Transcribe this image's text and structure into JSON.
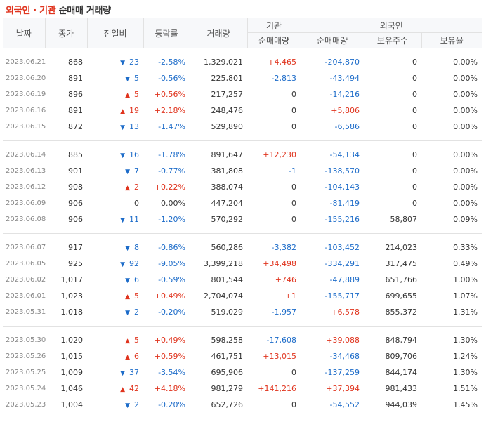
{
  "title": {
    "part1": "외국인 · 기관",
    "part2": "순매매 거래량"
  },
  "headers": {
    "date": "날짜",
    "close": "종가",
    "change": "전일비",
    "rate": "등락률",
    "volume": "거래량",
    "inst_group": "기관",
    "inst_net": "순매매량",
    "foreign_group": "외국인",
    "foreign_net": "순매매량",
    "foreign_shares": "보유주수",
    "foreign_ratio": "보유율"
  },
  "groups": [
    [
      {
        "date": "2023.06.21",
        "close": "868",
        "dir": "down",
        "change": "23",
        "rate": "-2.58%",
        "volume": "1,329,021",
        "inst": "+4,465",
        "frn": "-204,870",
        "shares": "0",
        "ratio": "0.00%"
      },
      {
        "date": "2023.06.20",
        "close": "891",
        "dir": "down",
        "change": "5",
        "rate": "-0.56%",
        "volume": "225,801",
        "inst": "-2,813",
        "frn": "-43,494",
        "shares": "0",
        "ratio": "0.00%"
      },
      {
        "date": "2023.06.19",
        "close": "896",
        "dir": "up",
        "change": "5",
        "rate": "+0.56%",
        "volume": "217,257",
        "inst": "0",
        "frn": "-14,216",
        "shares": "0",
        "ratio": "0.00%"
      },
      {
        "date": "2023.06.16",
        "close": "891",
        "dir": "up",
        "change": "19",
        "rate": "+2.18%",
        "volume": "248,476",
        "inst": "0",
        "frn": "+5,806",
        "shares": "0",
        "ratio": "0.00%"
      },
      {
        "date": "2023.06.15",
        "close": "872",
        "dir": "down",
        "change": "13",
        "rate": "-1.47%",
        "volume": "529,890",
        "inst": "0",
        "frn": "-6,586",
        "shares": "0",
        "ratio": "0.00%"
      }
    ],
    [
      {
        "date": "2023.06.14",
        "close": "885",
        "dir": "down",
        "change": "16",
        "rate": "-1.78%",
        "volume": "891,647",
        "inst": "+12,230",
        "frn": "-54,134",
        "shares": "0",
        "ratio": "0.00%"
      },
      {
        "date": "2023.06.13",
        "close": "901",
        "dir": "down",
        "change": "7",
        "rate": "-0.77%",
        "volume": "381,808",
        "inst": "-1",
        "frn": "-138,570",
        "shares": "0",
        "ratio": "0.00%"
      },
      {
        "date": "2023.06.12",
        "close": "908",
        "dir": "up",
        "change": "2",
        "rate": "+0.22%",
        "volume": "388,074",
        "inst": "0",
        "frn": "-104,143",
        "shares": "0",
        "ratio": "0.00%"
      },
      {
        "date": "2023.06.09",
        "close": "906",
        "dir": "none",
        "change": "0",
        "rate": "0.00%",
        "volume": "447,204",
        "inst": "0",
        "frn": "-81,419",
        "shares": "0",
        "ratio": "0.00%"
      },
      {
        "date": "2023.06.08",
        "close": "906",
        "dir": "down",
        "change": "11",
        "rate": "-1.20%",
        "volume": "570,292",
        "inst": "0",
        "frn": "-155,216",
        "shares": "58,807",
        "ratio": "0.09%"
      }
    ],
    [
      {
        "date": "2023.06.07",
        "close": "917",
        "dir": "down",
        "change": "8",
        "rate": "-0.86%",
        "volume": "560,286",
        "inst": "-3,382",
        "frn": "-103,452",
        "shares": "214,023",
        "ratio": "0.33%"
      },
      {
        "date": "2023.06.05",
        "close": "925",
        "dir": "down",
        "change": "92",
        "rate": "-9.05%",
        "volume": "3,399,218",
        "inst": "+34,498",
        "frn": "-334,291",
        "shares": "317,475",
        "ratio": "0.49%"
      },
      {
        "date": "2023.06.02",
        "close": "1,017",
        "dir": "down",
        "change": "6",
        "rate": "-0.59%",
        "volume": "801,544",
        "inst": "+746",
        "frn": "-47,889",
        "shares": "651,766",
        "ratio": "1.00%"
      },
      {
        "date": "2023.06.01",
        "close": "1,023",
        "dir": "up",
        "change": "5",
        "rate": "+0.49%",
        "volume": "2,704,074",
        "inst": "+1",
        "frn": "-155,717",
        "shares": "699,655",
        "ratio": "1.07%"
      },
      {
        "date": "2023.05.31",
        "close": "1,018",
        "dir": "down",
        "change": "2",
        "rate": "-0.20%",
        "volume": "519,029",
        "inst": "-1,957",
        "frn": "+6,578",
        "shares": "855,372",
        "ratio": "1.31%"
      }
    ],
    [
      {
        "date": "2023.05.30",
        "close": "1,020",
        "dir": "up",
        "change": "5",
        "rate": "+0.49%",
        "volume": "598,258",
        "inst": "-17,608",
        "frn": "+39,088",
        "shares": "848,794",
        "ratio": "1.30%"
      },
      {
        "date": "2023.05.26",
        "close": "1,015",
        "dir": "up",
        "change": "6",
        "rate": "+0.59%",
        "volume": "461,751",
        "inst": "+13,015",
        "frn": "-34,468",
        "shares": "809,706",
        "ratio": "1.24%"
      },
      {
        "date": "2023.05.25",
        "close": "1,009",
        "dir": "down",
        "change": "37",
        "rate": "-3.54%",
        "volume": "695,906",
        "inst": "0",
        "frn": "-137,259",
        "shares": "844,174",
        "ratio": "1.30%"
      },
      {
        "date": "2023.05.24",
        "close": "1,046",
        "dir": "up",
        "change": "42",
        "rate": "+4.18%",
        "volume": "981,279",
        "inst": "+141,216",
        "frn": "+37,394",
        "shares": "981,433",
        "ratio": "1.51%"
      },
      {
        "date": "2023.05.23",
        "close": "1,004",
        "dir": "down",
        "change": "2",
        "rate": "-0.20%",
        "volume": "652,726",
        "inst": "0",
        "frn": "-54,552",
        "shares": "944,039",
        "ratio": "1.45%"
      }
    ]
  ],
  "colors": {
    "up": "#e0341e",
    "down": "#1d6cc9",
    "title_accent": "#e0341e"
  },
  "icons": {
    "up": "triangle-up-icon",
    "down": "triangle-down-icon"
  }
}
